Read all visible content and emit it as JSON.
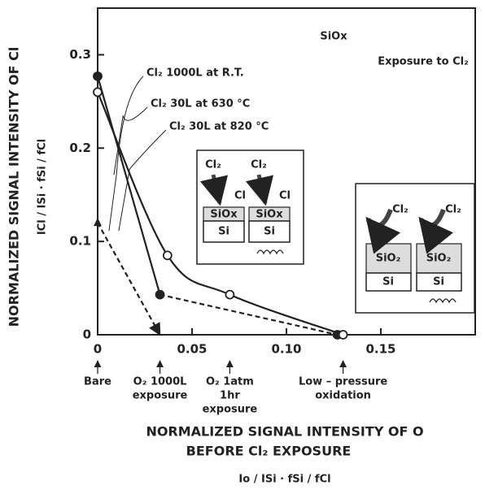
{
  "chart_data": {
    "type": "line",
    "ylabel": "NORMALIZED SIGNAL INTENSITY OF Cl",
    "ylabel_formula": "ICl / ISi · fSi / fCl",
    "xlabel_lines": [
      "NORMALIZED SIGNAL INTENSITY OF O",
      "BEFORE Cl₂ EXPOSURE"
    ],
    "xlabel_formula": "Io / ISi · fSi / fCl",
    "xlim": [
      0,
      0.2
    ],
    "ylim": [
      0,
      0.35
    ],
    "xticks": [
      0,
      0.05,
      {
        "value": 0.1,
        "label": "0.10"
      },
      0.15
    ],
    "yticks": [
      0,
      0.1,
      0.2,
      0.3
    ],
    "series": [
      {
        "name": "Cl₂ 1000L at R.T.",
        "color": "#222",
        "x": [
          0,
          0.033
        ],
        "values": [
          0.12,
          0
        ],
        "marker": "triangle",
        "dashed_from": 0
      },
      {
        "name": "Cl₂ 30L at 630 °C",
        "color": "#222",
        "x": [
          0,
          0.033,
          0.127
        ],
        "values": [
          0.277,
          0.043,
          0
        ],
        "marker": "filled",
        "dashed_from": 1
      },
      {
        "name": "Cl₂ 30L at 820 °C",
        "color": "#222",
        "x": [
          0,
          0.037,
          0.07,
          0.13
        ],
        "values": [
          0.26,
          0.085,
          0.043,
          0
        ],
        "marker": "open",
        "dashed_from": 3
      }
    ],
    "annotations": [
      {
        "x": 0,
        "lines": [
          "Bare"
        ]
      },
      {
        "x": 0.033,
        "lines": [
          "O₂ 1000L",
          "exposure"
        ]
      },
      {
        "x": 0.07,
        "lines": [
          "O₂ 1atm",
          "1hr",
          "exposure"
        ]
      },
      {
        "x": 0.13,
        "lines": [
          "Low – pressure",
          "oxidation"
        ]
      }
    ],
    "notes": [
      "SiOx",
      "Exposure to Cl₂"
    ]
  },
  "insets": [
    {
      "gas": "Cl₂",
      "atom": "Cl",
      "layer": "SiOx",
      "substrate": "Si"
    },
    {
      "gas": "Cl₂",
      "layer": "SiO₂",
      "substrate": "Si"
    }
  ]
}
